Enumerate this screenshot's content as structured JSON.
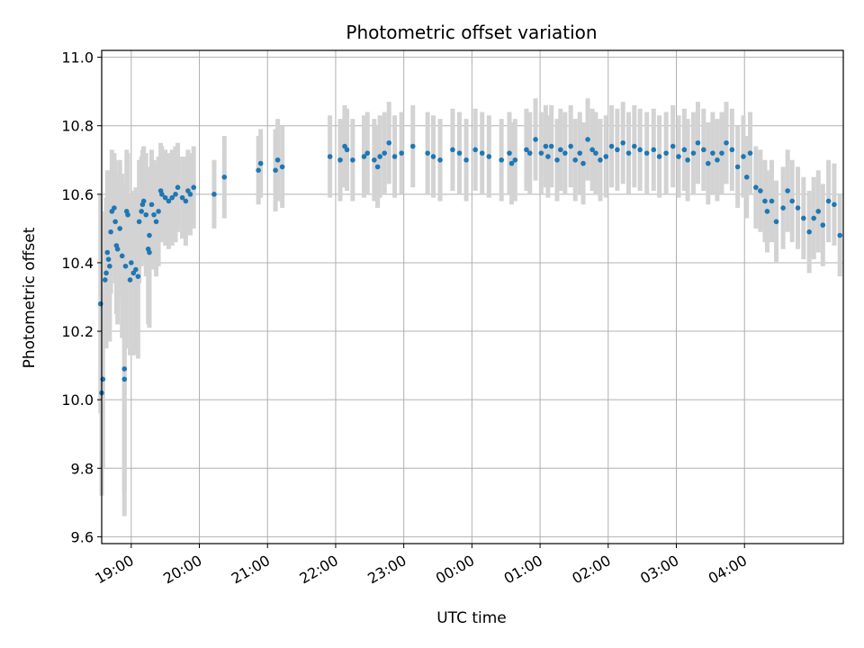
{
  "chart_data": {
    "type": "scatter",
    "title": "Photometric offset variation",
    "xlabel": "UTC time",
    "ylabel": "Photometric offset",
    "x_unit": "hours UTC (times after midnight continue past 24:00 on the axis)",
    "xlim": [
      "18:34",
      "29:27"
    ],
    "ylim": [
      9.58,
      11.02
    ],
    "x_tick_labels": [
      "19:00",
      "20:00",
      "21:00",
      "22:00",
      "23:00",
      "00:00",
      "01:00",
      "02:00",
      "03:00",
      "04:00"
    ],
    "x_tick_values": [
      "19:00",
      "20:00",
      "21:00",
      "22:00",
      "23:00",
      "24:00",
      "25:00",
      "26:00",
      "27:00",
      "28:00"
    ],
    "y_ticks": [
      9.6,
      9.8,
      10.0,
      10.2,
      10.4,
      10.6,
      10.8,
      11.0
    ],
    "grid": true,
    "colors": {
      "points": "#1f77b4",
      "errorbars": "#d3d3d3",
      "grid": "#b0b0b0"
    },
    "series": [
      {
        "points": [
          [
            "18:33",
            10.28,
            0.32
          ],
          [
            "18:34",
            10.02,
            0.3
          ],
          [
            "18:35",
            10.06,
            0.26
          ],
          [
            "18:37",
            10.35,
            0.2
          ],
          [
            "18:38",
            10.37,
            0.22
          ],
          [
            "18:39",
            10.43,
            0.24
          ],
          [
            "18:40",
            10.41,
            0.2
          ],
          [
            "18:41",
            10.39,
            0.22
          ],
          [
            "18:42",
            10.49,
            0.18
          ],
          [
            "18:43",
            10.55,
            0.18
          ],
          [
            "18:45",
            10.56,
            0.16
          ],
          [
            "18:46",
            10.52,
            0.18
          ],
          [
            "18:47",
            10.45,
            0.2
          ],
          [
            "18:48",
            10.44,
            0.22
          ],
          [
            "18:50",
            10.5,
            0.2
          ],
          [
            "18:52",
            10.42,
            0.24
          ],
          [
            "18:54",
            10.09,
            0.36
          ],
          [
            "18:54",
            10.06,
            0.4
          ],
          [
            "18:55",
            10.39,
            0.24
          ],
          [
            "18:56",
            10.55,
            0.18
          ],
          [
            "18:57",
            10.54,
            0.18
          ],
          [
            "18:59",
            10.35,
            0.22
          ],
          [
            "19:00",
            10.4,
            0.2
          ],
          [
            "19:02",
            10.37,
            0.24
          ],
          [
            "19:04",
            10.38,
            0.24
          ],
          [
            "19:06",
            10.36,
            0.24
          ],
          [
            "19:07",
            10.52,
            0.18
          ],
          [
            "19:09",
            10.55,
            0.16
          ],
          [
            "19:10",
            10.57,
            0.16
          ],
          [
            "19:11",
            10.58,
            0.16
          ],
          [
            "19:13",
            10.54,
            0.18
          ],
          [
            "19:15",
            10.44,
            0.22
          ],
          [
            "19:16",
            10.48,
            0.2
          ],
          [
            "19:16",
            10.43,
            0.22
          ],
          [
            "19:18",
            10.57,
            0.16
          ],
          [
            "19:20",
            10.54,
            0.16
          ],
          [
            "19:22",
            10.52,
            0.16
          ],
          [
            "19:24",
            10.55,
            0.16
          ],
          [
            "19:26",
            10.61,
            0.14
          ],
          [
            "19:27",
            10.6,
            0.14
          ],
          [
            "19:30",
            10.59,
            0.14
          ],
          [
            "19:33",
            10.58,
            0.14
          ],
          [
            "19:36",
            10.59,
            0.14
          ],
          [
            "19:39",
            10.6,
            0.14
          ],
          [
            "19:41",
            10.62,
            0.13
          ],
          [
            "19:45",
            10.59,
            0.12
          ],
          [
            "19:48",
            10.58,
            0.13
          ],
          [
            "19:50",
            10.61,
            0.12
          ],
          [
            "19:52",
            10.6,
            0.12
          ],
          [
            "19:55",
            10.62,
            0.12
          ],
          [
            "20:13",
            10.6,
            0.1
          ],
          [
            "20:22",
            10.65,
            0.12
          ],
          [
            "20:52",
            10.67,
            0.1
          ],
          [
            "20:54",
            10.69,
            0.1
          ],
          [
            "21:07",
            10.67,
            0.12
          ],
          [
            "21:09",
            10.7,
            0.12
          ],
          [
            "21:13",
            10.68,
            0.12
          ],
          [
            "21:55",
            10.71,
            0.12
          ],
          [
            "22:04",
            10.7,
            0.12
          ],
          [
            "22:08",
            10.74,
            0.12
          ],
          [
            "22:10",
            10.73,
            0.12
          ],
          [
            "22:15",
            10.7,
            0.12
          ],
          [
            "22:25",
            10.71,
            0.12
          ],
          [
            "22:28",
            10.72,
            0.12
          ],
          [
            "22:34",
            10.7,
            0.12
          ],
          [
            "22:37",
            10.68,
            0.12
          ],
          [
            "22:39",
            10.71,
            0.12
          ],
          [
            "22:43",
            10.72,
            0.12
          ],
          [
            "22:47",
            10.75,
            0.12
          ],
          [
            "22:52",
            10.71,
            0.12
          ],
          [
            "22:58",
            10.72,
            0.12
          ],
          [
            "23:08",
            10.74,
            0.12
          ],
          [
            "23:21",
            10.72,
            0.12
          ],
          [
            "23:26",
            10.71,
            0.12
          ],
          [
            "23:32",
            10.7,
            0.12
          ],
          [
            "23:43",
            10.73,
            0.12
          ],
          [
            "23:49",
            10.72,
            0.12
          ],
          [
            "23:55",
            10.7,
            0.12
          ],
          [
            "24:03",
            10.73,
            0.12
          ],
          [
            "24:09",
            10.72,
            0.12
          ],
          [
            "24:15",
            10.71,
            0.12
          ],
          [
            "24:26",
            10.7,
            0.12
          ],
          [
            "24:33",
            10.72,
            0.12
          ],
          [
            "24:35",
            10.69,
            0.12
          ],
          [
            "24:38",
            10.7,
            0.12
          ],
          [
            "24:48",
            10.73,
            0.12
          ],
          [
            "24:51",
            10.72,
            0.12
          ],
          [
            "24:56",
            10.76,
            0.12
          ],
          [
            "25:01",
            10.72,
            0.12
          ],
          [
            "25:05",
            10.74,
            0.12
          ],
          [
            "25:07",
            10.71,
            0.12
          ],
          [
            "25:10",
            10.74,
            0.12
          ],
          [
            "25:15",
            10.7,
            0.12
          ],
          [
            "25:18",
            10.73,
            0.12
          ],
          [
            "25:22",
            10.72,
            0.12
          ],
          [
            "25:27",
            10.74,
            0.12
          ],
          [
            "25:31",
            10.7,
            0.12
          ],
          [
            "25:35",
            10.72,
            0.12
          ],
          [
            "25:38",
            10.69,
            0.12
          ],
          [
            "25:42",
            10.76,
            0.12
          ],
          [
            "25:46",
            10.73,
            0.12
          ],
          [
            "25:49",
            10.72,
            0.12
          ],
          [
            "25:53",
            10.7,
            0.12
          ],
          [
            "25:58",
            10.71,
            0.12
          ],
          [
            "26:03",
            10.74,
            0.12
          ],
          [
            "26:08",
            10.73,
            0.12
          ],
          [
            "26:13",
            10.75,
            0.12
          ],
          [
            "26:18",
            10.72,
            0.12
          ],
          [
            "26:23",
            10.74,
            0.12
          ],
          [
            "26:28",
            10.73,
            0.12
          ],
          [
            "26:34",
            10.72,
            0.12
          ],
          [
            "26:40",
            10.73,
            0.12
          ],
          [
            "26:45",
            10.71,
            0.12
          ],
          [
            "26:51",
            10.72,
            0.12
          ],
          [
            "26:57",
            10.74,
            0.12
          ],
          [
            "27:02",
            10.71,
            0.12
          ],
          [
            "27:07",
            10.73,
            0.12
          ],
          [
            "27:10",
            10.7,
            0.12
          ],
          [
            "27:15",
            10.72,
            0.12
          ],
          [
            "27:19",
            10.75,
            0.12
          ],
          [
            "27:24",
            10.73,
            0.12
          ],
          [
            "27:28",
            10.69,
            0.12
          ],
          [
            "27:32",
            10.72,
            0.12
          ],
          [
            "27:36",
            10.7,
            0.12
          ],
          [
            "27:40",
            10.72,
            0.12
          ],
          [
            "27:44",
            10.75,
            0.12
          ],
          [
            "27:49",
            10.73,
            0.12
          ],
          [
            "27:54",
            10.68,
            0.12
          ],
          [
            "27:59",
            10.71,
            0.12
          ],
          [
            "28:02",
            10.65,
            0.12
          ],
          [
            "28:05",
            10.72,
            0.12
          ],
          [
            "28:10",
            10.62,
            0.12
          ],
          [
            "28:14",
            10.61,
            0.12
          ],
          [
            "28:18",
            10.58,
            0.12
          ],
          [
            "28:20",
            10.55,
            0.12
          ],
          [
            "28:24",
            10.58,
            0.12
          ],
          [
            "28:28",
            10.52,
            0.12
          ],
          [
            "28:34",
            10.56,
            0.12
          ],
          [
            "28:38",
            10.61,
            0.12
          ],
          [
            "28:42",
            10.58,
            0.12
          ],
          [
            "28:47",
            10.56,
            0.12
          ],
          [
            "28:52",
            10.53,
            0.12
          ],
          [
            "28:57",
            10.49,
            0.12
          ],
          [
            "29:01",
            10.53,
            0.12
          ],
          [
            "29:05",
            10.55,
            0.12
          ],
          [
            "29:09",
            10.51,
            0.12
          ],
          [
            "29:14",
            10.58,
            0.12
          ],
          [
            "29:19",
            10.57,
            0.12
          ],
          [
            "29:24",
            10.48,
            0.12
          ]
        ]
      }
    ]
  }
}
